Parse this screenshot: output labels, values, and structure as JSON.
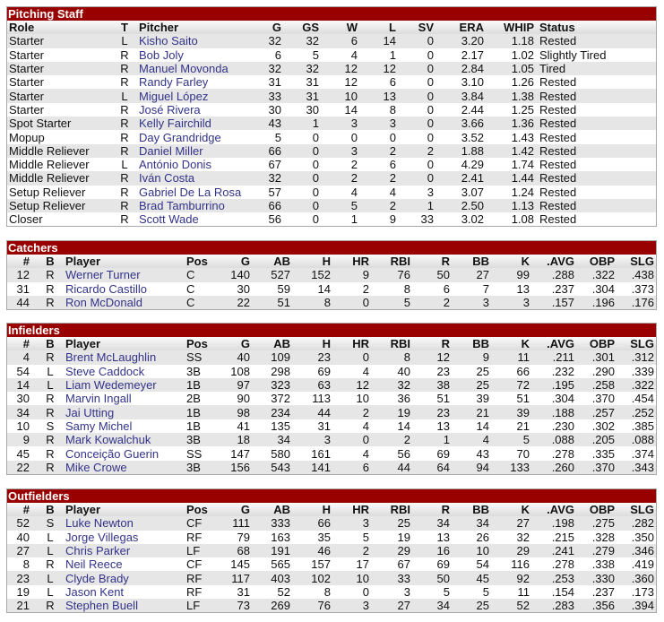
{
  "colors": {
    "title_bar": "#990000",
    "link": "#33338a",
    "row_alt": "#e6e6e6"
  },
  "pitching": {
    "title": "Pitching Staff",
    "headers": [
      "Role",
      "T",
      "Pitcher",
      "G",
      "GS",
      "W",
      "L",
      "SV",
      "ERA",
      "WHIP",
      "Status"
    ],
    "rows": [
      [
        "Starter",
        "L",
        "Kisho Saito",
        "32",
        "32",
        "6",
        "14",
        "0",
        "3.20",
        "1.18",
        "Rested"
      ],
      [
        "Starter",
        "R",
        "Bob Joly",
        "6",
        "5",
        "4",
        "1",
        "0",
        "2.17",
        "1.02",
        "Slightly Tired"
      ],
      [
        "Starter",
        "R",
        "Manuel Movonda",
        "32",
        "32",
        "12",
        "12",
        "0",
        "2.84",
        "1.05",
        "Tired"
      ],
      [
        "Starter",
        "R",
        "Randy Farley",
        "31",
        "31",
        "12",
        "6",
        "0",
        "3.10",
        "1.26",
        "Rested"
      ],
      [
        "Starter",
        "L",
        "Miguel López",
        "33",
        "31",
        "10",
        "13",
        "0",
        "3.84",
        "1.38",
        "Rested"
      ],
      [
        "Starter",
        "R",
        "José Rivera",
        "30",
        "30",
        "14",
        "8",
        "0",
        "2.44",
        "1.25",
        "Rested"
      ],
      [
        "Spot Starter",
        "R",
        "Kelly Fairchild",
        "43",
        "1",
        "3",
        "3",
        "0",
        "3.66",
        "1.36",
        "Rested"
      ],
      [
        "Mopup",
        "R",
        "Day Grandridge",
        "5",
        "0",
        "0",
        "0",
        "0",
        "3.52",
        "1.43",
        "Rested"
      ],
      [
        "Middle Reliever",
        "R",
        "Daniel Miller",
        "66",
        "0",
        "3",
        "2",
        "2",
        "1.88",
        "1.42",
        "Rested"
      ],
      [
        "Middle Reliever",
        "L",
        "António Donis",
        "67",
        "0",
        "2",
        "6",
        "0",
        "4.29",
        "1.74",
        "Rested"
      ],
      [
        "Middle Reliever",
        "R",
        "Iván Costa",
        "32",
        "0",
        "2",
        "2",
        "0",
        "2.41",
        "1.44",
        "Rested"
      ],
      [
        "Setup Reliever",
        "R",
        "Gabriel De La Rosa",
        "57",
        "0",
        "4",
        "4",
        "3",
        "3.07",
        "1.24",
        "Rested"
      ],
      [
        "Setup Reliever",
        "R",
        "Brad Tamburrino",
        "66",
        "0",
        "5",
        "2",
        "1",
        "2.50",
        "1.13",
        "Rested"
      ],
      [
        "Closer",
        "R",
        "Scott Wade",
        "56",
        "0",
        "1",
        "9",
        "33",
        "3.02",
        "1.08",
        "Rested"
      ]
    ]
  },
  "batting_headers": [
    "#",
    "B",
    "Player",
    "Pos",
    "G",
    "AB",
    "H",
    "HR",
    "RBI",
    "R",
    "BB",
    "K",
    ".AVG",
    "OBP",
    "SLG"
  ],
  "catchers": {
    "title": "Catchers",
    "rows": [
      [
        "12",
        "R",
        "Werner Turner",
        "C",
        "140",
        "527",
        "152",
        "9",
        "76",
        "50",
        "27",
        "99",
        ".288",
        ".322",
        ".438"
      ],
      [
        "31",
        "R",
        "Ricardo Castillo",
        "C",
        "30",
        "59",
        "14",
        "2",
        "8",
        "6",
        "7",
        "13",
        ".237",
        ".304",
        ".373"
      ],
      [
        "44",
        "R",
        "Ron McDonald",
        "C",
        "22",
        "51",
        "8",
        "0",
        "5",
        "2",
        "3",
        "3",
        ".157",
        ".196",
        ".176"
      ]
    ]
  },
  "infielders": {
    "title": "Infielders",
    "rows": [
      [
        "4",
        "R",
        "Brent McLaughlin",
        "SS",
        "40",
        "109",
        "23",
        "0",
        "8",
        "12",
        "9",
        "11",
        ".211",
        ".301",
        ".312"
      ],
      [
        "54",
        "L",
        "Steve Caddock",
        "3B",
        "108",
        "298",
        "69",
        "4",
        "40",
        "23",
        "25",
        "66",
        ".232",
        ".290",
        ".339"
      ],
      [
        "14",
        "L",
        "Liam Wedemeyer",
        "1B",
        "97",
        "323",
        "63",
        "12",
        "32",
        "38",
        "25",
        "72",
        ".195",
        ".258",
        ".322"
      ],
      [
        "30",
        "R",
        "Marvin Ingall",
        "2B",
        "90",
        "372",
        "113",
        "10",
        "36",
        "51",
        "39",
        "51",
        ".304",
        ".370",
        ".454"
      ],
      [
        "34",
        "R",
        "Jai Utting",
        "1B",
        "98",
        "234",
        "44",
        "2",
        "19",
        "23",
        "21",
        "39",
        ".188",
        ".257",
        ".252"
      ],
      [
        "10",
        "S",
        "Samy Michel",
        "1B",
        "41",
        "135",
        "31",
        "4",
        "14",
        "13",
        "14",
        "21",
        ".230",
        ".302",
        ".385"
      ],
      [
        "9",
        "R",
        "Mark Kowalchuk",
        "3B",
        "18",
        "34",
        "3",
        "0",
        "2",
        "1",
        "4",
        "5",
        ".088",
        ".205",
        ".088"
      ],
      [
        "45",
        "R",
        "Conceição Guerin",
        "SS",
        "147",
        "580",
        "161",
        "4",
        "56",
        "69",
        "43",
        "70",
        ".278",
        ".335",
        ".374"
      ],
      [
        "22",
        "R",
        "Mike Crowe",
        "3B",
        "156",
        "543",
        "141",
        "6",
        "44",
        "64",
        "94",
        "133",
        ".260",
        ".370",
        ".343"
      ]
    ]
  },
  "outfielders": {
    "title": "Outfielders",
    "rows": [
      [
        "52",
        "S",
        "Luke Newton",
        "CF",
        "111",
        "333",
        "66",
        "3",
        "25",
        "34",
        "34",
        "27",
        ".198",
        ".275",
        ".282"
      ],
      [
        "40",
        "L",
        "Jorge Villegas",
        "RF",
        "79",
        "163",
        "35",
        "5",
        "19",
        "13",
        "26",
        "32",
        ".215",
        ".328",
        ".350"
      ],
      [
        "27",
        "L",
        "Chris Parker",
        "LF",
        "68",
        "191",
        "46",
        "2",
        "29",
        "16",
        "10",
        "29",
        ".241",
        ".279",
        ".346"
      ],
      [
        "8",
        "R",
        "Neil Reece",
        "CF",
        "145",
        "565",
        "157",
        "17",
        "67",
        "69",
        "54",
        "116",
        ".278",
        ".338",
        ".419"
      ],
      [
        "23",
        "L",
        "Clyde Brady",
        "RF",
        "117",
        "403",
        "102",
        "10",
        "33",
        "50",
        "45",
        "92",
        ".253",
        ".330",
        ".360"
      ],
      [
        "19",
        "L",
        "Jason Kent",
        "RF",
        "31",
        "52",
        "8",
        "0",
        "3",
        "5",
        "5",
        "11",
        ".154",
        ".237",
        ".173"
      ],
      [
        "21",
        "R",
        "Stephen Buell",
        "LF",
        "73",
        "269",
        "76",
        "3",
        "27",
        "34",
        "25",
        "52",
        ".283",
        ".356",
        ".394"
      ]
    ]
  }
}
